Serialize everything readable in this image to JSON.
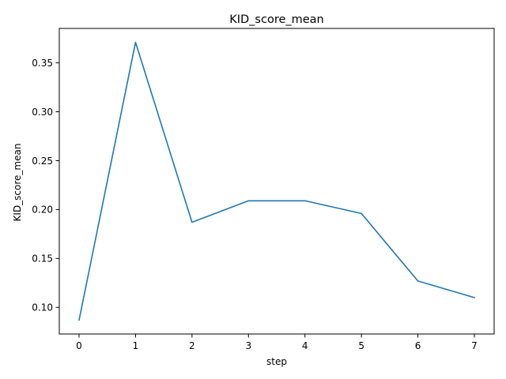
{
  "chart_data": {
    "type": "line",
    "title": "KID_score_mean",
    "xlabel": "step",
    "ylabel": "KID_score_mean",
    "x": [
      0,
      1,
      2,
      3,
      4,
      5,
      6,
      7
    ],
    "series": [
      {
        "values": [
          0.087,
          0.371,
          0.187,
          0.209,
          0.209,
          0.196,
          0.127,
          0.11
        ],
        "color": "#1f77b4"
      }
    ],
    "xlim": [
      -0.35,
      7.35
    ],
    "ylim": [
      0.0728,
      0.3852
    ],
    "xticks": [
      0,
      1,
      2,
      3,
      4,
      5,
      6,
      7
    ],
    "xtick_labels": [
      "0",
      "1",
      "2",
      "3",
      "4",
      "5",
      "6",
      "7"
    ],
    "yticks": [
      0.1,
      0.15,
      0.2,
      0.25,
      0.3,
      0.35
    ],
    "ytick_labels": [
      "0.10",
      "0.15",
      "0.20",
      "0.25",
      "0.30",
      "0.35"
    ],
    "grid": false,
    "legend": "none"
  }
}
